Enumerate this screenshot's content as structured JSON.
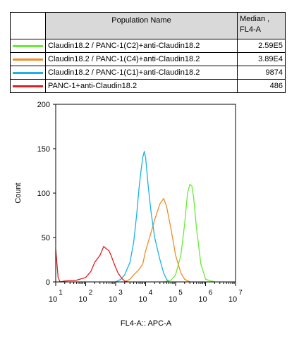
{
  "legend": {
    "header_population": "Population Name",
    "header_median": "Median , FL4-A",
    "rows": [
      {
        "name": "Claudin18.2 / PANC-1(C2)+anti-Claudin18.2",
        "median": "2.59E5",
        "color": "#66ee33"
      },
      {
        "name": "Claudin18.2 / PANC-1(C4)+anti-Claudin18.2",
        "median": "3.89E4",
        "color": "#f08c28"
      },
      {
        "name": "Claudin18.2 / PANC-1(C1)+anti-Claudin18.2",
        "median": "9874",
        "color": "#1ab2e6"
      },
      {
        "name": "PANC-1+anti-Claudin18.2",
        "median": "486",
        "color": "#e02020"
      }
    ]
  },
  "chart_data": {
    "type": "line",
    "xlabel": "FL4-A:: APC-A",
    "ylabel": "Count",
    "x_scale": "log",
    "xlim": [
      10,
      10000000
    ],
    "ylim": [
      0,
      200
    ],
    "y_ticks": [
      0,
      50,
      100,
      150,
      200
    ],
    "y_tick_labels": [
      "0",
      "50",
      "100",
      "150",
      "200"
    ],
    "x_ticks": [
      10,
      100,
      1000,
      10000,
      100000,
      1000000,
      10000000
    ],
    "x_tick_labels": [
      {
        "base": "10",
        "exp": "1"
      },
      {
        "base": "10",
        "exp": "2"
      },
      {
        "base": "10",
        "exp": "3"
      },
      {
        "base": "10",
        "exp": "4"
      },
      {
        "base": "10",
        "exp": "5"
      },
      {
        "base": "10",
        "exp": "6"
      },
      {
        "base": "10",
        "exp": "7"
      }
    ],
    "series": [
      {
        "name": "Claudin18.2 / PANC-1(C2)+anti-Claudin18.2",
        "color": "#66ee33",
        "x": [
          40000,
          70000,
          100000,
          150000,
          200000,
          250000,
          300000,
          350000,
          400000,
          500000,
          700000,
          1000000,
          2000000
        ],
        "y": [
          0,
          2,
          8,
          30,
          65,
          100,
          110,
          108,
          95,
          60,
          20,
          3,
          0
        ]
      },
      {
        "name": "Claudin18.2 / PANC-1(C4)+anti-Claudin18.2",
        "color": "#f08c28",
        "x": [
          2000,
          3000,
          4000,
          6000,
          8000,
          10000,
          15000,
          20000,
          30000,
          40000,
          50000,
          70000,
          100000,
          150000,
          200000,
          300000
        ],
        "y": [
          0,
          3,
          8,
          14,
          20,
          35,
          55,
          70,
          88,
          94,
          85,
          60,
          30,
          10,
          3,
          0
        ]
      },
      {
        "name": "Claudin18.2 / PANC-1(C1)+anti-Claudin18.2",
        "color": "#1ab2e6",
        "x": [
          1000,
          1500,
          2000,
          3000,
          4000,
          5000,
          6000,
          7000,
          8000,
          9000,
          10000,
          12000,
          15000,
          20000,
          30000,
          40000,
          50000,
          60000
        ],
        "y": [
          0,
          3,
          8,
          22,
          45,
          75,
          105,
          125,
          140,
          147,
          140,
          110,
          80,
          50,
          25,
          10,
          3,
          0
        ]
      },
      {
        "name": "PANC-1+anti-Claudin18.2",
        "color": "#e02020",
        "x": [
          10,
          12,
          14,
          20,
          50,
          100,
          150,
          200,
          300,
          400,
          500,
          600,
          700,
          900,
          1200,
          1600,
          2000,
          2500
        ],
        "y": [
          37,
          5,
          0,
          1,
          2,
          5,
          12,
          22,
          30,
          40,
          37,
          35,
          30,
          20,
          10,
          4,
          1,
          0
        ]
      }
    ]
  }
}
